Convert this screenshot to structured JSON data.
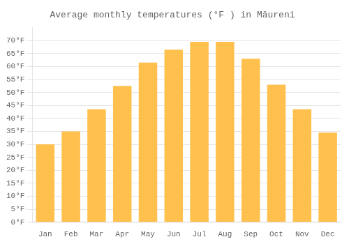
{
  "chart_data": {
    "type": "bar",
    "title": "Average monthly temperatures (°F ) in Măureni",
    "categories": [
      "Jan",
      "Feb",
      "Mar",
      "Apr",
      "May",
      "Jun",
      "Jul",
      "Aug",
      "Sep",
      "Oct",
      "Nov",
      "Dec"
    ],
    "values": [
      30,
      35,
      43.5,
      52.5,
      61.5,
      66.5,
      69.5,
      69.5,
      63,
      53,
      43.5,
      34.5
    ],
    "color": "#FFC04D",
    "ylim": [
      0,
      75
    ],
    "yticks": [
      {
        "value": 0,
        "label": "0°F"
      },
      {
        "value": 5,
        "label": "5°F"
      },
      {
        "value": 10,
        "label": "10°F"
      },
      {
        "value": 15,
        "label": "15°F"
      },
      {
        "value": 20,
        "label": "20°F"
      },
      {
        "value": 25,
        "label": "25°F"
      },
      {
        "value": 30,
        "label": "30°F"
      },
      {
        "value": 35,
        "label": "35°F"
      },
      {
        "value": 40,
        "label": "40°F"
      },
      {
        "value": 45,
        "label": "45°F"
      },
      {
        "value": 50,
        "label": "50°F"
      },
      {
        "value": 55,
        "label": "55°F"
      },
      {
        "value": 60,
        "label": "60°F"
      },
      {
        "value": 65,
        "label": "65°F"
      },
      {
        "value": 70,
        "label": "70°F"
      }
    ],
    "grid": true
  }
}
